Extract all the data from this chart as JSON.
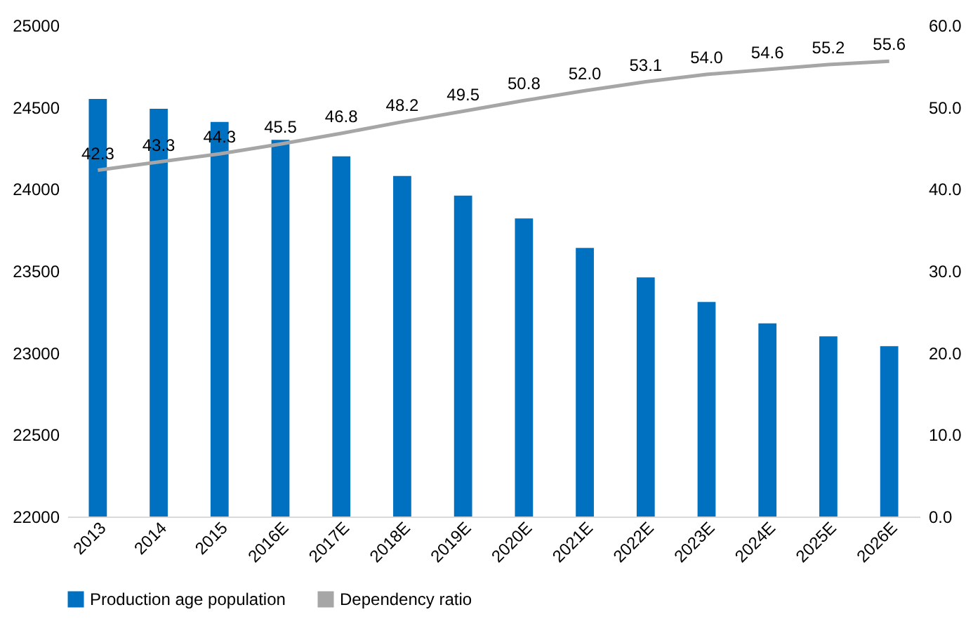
{
  "chart_data": {
    "type": "bar",
    "categories": [
      "2013",
      "2014",
      "2015",
      "2016E",
      "2017E",
      "2018E",
      "2019E",
      "2020E",
      "2021E",
      "2022E",
      "2023E",
      "2024E",
      "2025E",
      "2026E"
    ],
    "series": [
      {
        "name": "Production age population",
        "color": "#0070c0",
        "values": [
          24550,
          24490,
          24410,
          24300,
          24200,
          24080,
          23960,
          23820,
          23640,
          23460,
          23310,
          23180,
          23100,
          23040
        ]
      },
      {
        "name": "Dependency ratio",
        "type": "line",
        "axis": "y2",
        "color": "#a6a6a6",
        "values": [
          42.3,
          43.3,
          44.3,
          45.5,
          46.8,
          48.2,
          49.5,
          50.8,
          52.0,
          53.1,
          54.0,
          54.6,
          55.2,
          55.6
        ],
        "value_labels": [
          "42.3",
          "43.3",
          "44.3",
          "45.5",
          "46.8",
          "48.2",
          "49.5",
          "50.8",
          "52.0",
          "53.1",
          "54.0",
          "54.6",
          "55.2",
          "55.6"
        ]
      }
    ],
    "ylim": [
      22000,
      25000
    ],
    "yticks": [
      22000,
      22500,
      23000,
      23500,
      24000,
      24500,
      25000
    ],
    "y2lim": [
      0,
      60
    ],
    "y2ticks": [
      {
        "value": 0,
        "label": "0.0"
      },
      {
        "value": 10,
        "label": "10.0"
      },
      {
        "value": 20,
        "label": "20.0"
      },
      {
        "value": 30,
        "label": "30.0"
      },
      {
        "value": 40,
        "label": "40.0"
      },
      {
        "value": 50,
        "label": "50.0"
      },
      {
        "value": 60,
        "label": "60.0"
      }
    ],
    "legend": "bottom"
  }
}
